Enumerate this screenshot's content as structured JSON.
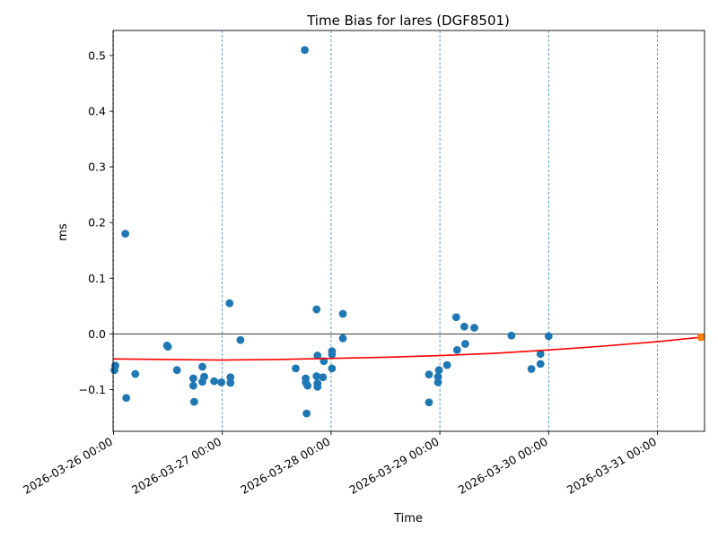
{
  "chart_data": {
    "type": "scatter",
    "title": "Time Bias for lares (DGF8501)",
    "xlabel": "Time",
    "ylabel": "ms",
    "x_unit": "datetime",
    "xlim": [
      "2026-03-25T23:54",
      "2026-03-31T10:24"
    ],
    "ylim": [
      -0.175,
      0.545
    ],
    "x_ticks": [
      {
        "value": "2026-03-26T00:00",
        "label": "2026-03-26 00:00"
      },
      {
        "value": "2026-03-27T00:00",
        "label": "2026-03-27 00:00"
      },
      {
        "value": "2026-03-28T00:00",
        "label": "2026-03-28 00:00"
      },
      {
        "value": "2026-03-29T00:00",
        "label": "2026-03-29 00:00"
      },
      {
        "value": "2026-03-30T00:00",
        "label": "2026-03-30 00:00"
      },
      {
        "value": "2026-03-31T00:00",
        "label": "2026-03-31 00:00"
      }
    ],
    "y_ticks": [
      {
        "value": -0.1,
        "label": "−0.1"
      },
      {
        "value": 0.0,
        "label": "0.0"
      },
      {
        "value": 0.1,
        "label": "0.1"
      },
      {
        "value": 0.2,
        "label": "0.2"
      },
      {
        "value": 0.3,
        "label": "0.3"
      },
      {
        "value": 0.4,
        "label": "0.4"
      },
      {
        "value": 0.5,
        "label": "0.5"
      }
    ],
    "day_gridlines": true,
    "zero_line": true,
    "series": [
      {
        "style": "points",
        "color": "#1f77b4",
        "points": [
          {
            "x": "2026-03-26T00:12",
            "y": -0.065
          },
          {
            "x": "2026-03-26T00:24",
            "y": -0.057
          },
          {
            "x": "2026-03-26T02:36",
            "y": 0.18
          },
          {
            "x": "2026-03-26T02:48",
            "y": -0.115
          },
          {
            "x": "2026-03-26T04:48",
            "y": -0.072
          },
          {
            "x": "2026-03-26T11:48",
            "y": -0.021
          },
          {
            "x": "2026-03-26T12:00",
            "y": -0.023
          },
          {
            "x": "2026-03-26T14:00",
            "y": -0.065
          },
          {
            "x": "2026-03-26T17:36",
            "y": -0.08
          },
          {
            "x": "2026-03-26T17:36",
            "y": -0.093
          },
          {
            "x": "2026-03-26T17:48",
            "y": -0.122
          },
          {
            "x": "2026-03-26T19:36",
            "y": -0.059
          },
          {
            "x": "2026-03-26T19:36",
            "y": -0.086
          },
          {
            "x": "2026-03-26T20:00",
            "y": -0.077
          },
          {
            "x": "2026-03-26T22:12",
            "y": -0.085
          },
          {
            "x": "2026-03-26T23:48",
            "y": -0.087
          },
          {
            "x": "2026-03-27T01:36",
            "y": 0.055
          },
          {
            "x": "2026-03-27T01:48",
            "y": -0.078
          },
          {
            "x": "2026-03-27T01:48",
            "y": -0.088
          },
          {
            "x": "2026-03-27T04:00",
            "y": -0.011
          },
          {
            "x": "2026-03-27T16:12",
            "y": -0.062
          },
          {
            "x": "2026-03-27T18:12",
            "y": 0.51
          },
          {
            "x": "2026-03-27T18:24",
            "y": -0.08
          },
          {
            "x": "2026-03-27T18:24",
            "y": -0.087
          },
          {
            "x": "2026-03-27T18:36",
            "y": -0.143
          },
          {
            "x": "2026-03-27T18:48",
            "y": -0.093
          },
          {
            "x": "2026-03-27T20:48",
            "y": 0.044
          },
          {
            "x": "2026-03-27T20:48",
            "y": -0.076
          },
          {
            "x": "2026-03-27T21:00",
            "y": -0.039
          },
          {
            "x": "2026-03-27T21:00",
            "y": -0.089
          },
          {
            "x": "2026-03-27T21:00",
            "y": -0.095
          },
          {
            "x": "2026-03-27T22:12",
            "y": -0.078
          },
          {
            "x": "2026-03-27T22:24",
            "y": -0.049
          },
          {
            "x": "2026-03-28T00:12",
            "y": -0.031
          },
          {
            "x": "2026-03-28T00:12",
            "y": -0.037
          },
          {
            "x": "2026-03-28T00:12",
            "y": -0.062
          },
          {
            "x": "2026-03-28T02:36",
            "y": 0.036
          },
          {
            "x": "2026-03-28T02:36",
            "y": -0.008
          },
          {
            "x": "2026-03-28T21:36",
            "y": -0.123
          },
          {
            "x": "2026-03-28T21:36",
            "y": -0.073
          },
          {
            "x": "2026-03-28T23:36",
            "y": -0.077
          },
          {
            "x": "2026-03-28T23:36",
            "y": -0.087
          },
          {
            "x": "2026-03-28T23:48",
            "y": -0.065
          },
          {
            "x": "2026-03-29T01:36",
            "y": -0.056
          },
          {
            "x": "2026-03-29T03:36",
            "y": 0.03
          },
          {
            "x": "2026-03-29T03:48",
            "y": -0.029
          },
          {
            "x": "2026-03-29T05:24",
            "y": 0.013
          },
          {
            "x": "2026-03-29T05:36",
            "y": -0.018
          },
          {
            "x": "2026-03-29T07:36",
            "y": 0.011
          },
          {
            "x": "2026-03-29T15:48",
            "y": -0.003
          },
          {
            "x": "2026-03-29T20:12",
            "y": -0.063
          },
          {
            "x": "2026-03-29T22:12",
            "y": -0.036
          },
          {
            "x": "2026-03-29T22:12",
            "y": -0.054
          },
          {
            "x": "2026-03-30T00:00",
            "y": -0.004
          }
        ]
      },
      {
        "style": "curve",
        "color": "#ff0000",
        "points": [
          {
            "x": "2026-03-26T00:00",
            "y": -0.045
          },
          {
            "x": "2026-03-26T12:00",
            "y": -0.046
          },
          {
            "x": "2026-03-27T00:00",
            "y": -0.047
          },
          {
            "x": "2026-03-27T12:00",
            "y": -0.046
          },
          {
            "x": "2026-03-28T00:00",
            "y": -0.044
          },
          {
            "x": "2026-03-28T12:00",
            "y": -0.042
          },
          {
            "x": "2026-03-29T00:00",
            "y": -0.039
          },
          {
            "x": "2026-03-29T12:00",
            "y": -0.035
          },
          {
            "x": "2026-03-30T00:00",
            "y": -0.029
          },
          {
            "x": "2026-03-30T12:00",
            "y": -0.022
          },
          {
            "x": "2026-03-31T00:00",
            "y": -0.014
          },
          {
            "x": "2026-03-31T09:36",
            "y": -0.006
          }
        ]
      },
      {
        "style": "points",
        "color": "#ff7f0e",
        "points": [
          {
            "x": "2026-03-31T09:36",
            "y": -0.006
          }
        ]
      }
    ]
  }
}
